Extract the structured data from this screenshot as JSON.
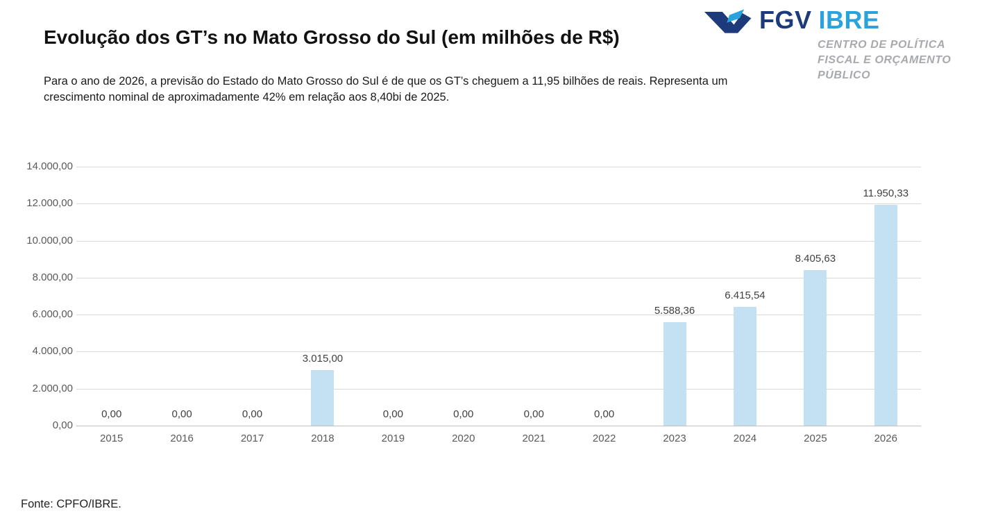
{
  "header": {
    "title": "Evolução dos GT’s no Mato Grosso do Sul (em milhões de R$)",
    "subtitle": "Para o ano de 2026, a previsão do Estado do Mato Grosso do Sul é de que os GT’s cheguem a 11,95 bilhões de reais. Representa um crescimento nominal de aproximadamente 42% em relação aos 8,40bi de 2025."
  },
  "logo": {
    "fgv_label": "FGV",
    "ibre_label": "IBRE",
    "center_line1": "CENTRO DE POLÍTICA",
    "center_line2": "FISCAL E ORÇAMENTO",
    "center_line3": "PÚBLICO",
    "fgv_color": "#1d3a7a",
    "ibre_color": "#2aa2dc",
    "mark_dark_color": "#1d3a7a",
    "mark_light_color": "#2aa2dc",
    "center_color": "#a7a9ac"
  },
  "chart_data": {
    "type": "bar",
    "title": "Evolução dos GT’s no Mato Grosso do Sul (em milhões de R$)",
    "categories": [
      "2015",
      "2016",
      "2017",
      "2018",
      "2019",
      "2020",
      "2021",
      "2022",
      "2023",
      "2024",
      "2025",
      "2026"
    ],
    "values": [
      0,
      0,
      0,
      3015.0,
      0,
      0,
      0,
      0,
      5588.36,
      6415.54,
      8405.63,
      11950.33
    ],
    "value_labels": [
      "0,00",
      "0,00",
      "0,00",
      "3.015,00",
      "0,00",
      "0,00",
      "0,00",
      "0,00",
      "5.588,36",
      "6.415,54",
      "8.405,63",
      "11.950,33"
    ],
    "y_ticks": [
      {
        "value": 0,
        "label": "0,00"
      },
      {
        "value": 2000,
        "label": "2.000,00"
      },
      {
        "value": 4000,
        "label": "4.000,00"
      },
      {
        "value": 6000,
        "label": "6.000,00"
      },
      {
        "value": 8000,
        "label": "8.000,00"
      },
      {
        "value": 10000,
        "label": "10.000,00"
      },
      {
        "value": 12000,
        "label": "12.000,00"
      },
      {
        "value": 14000,
        "label": "14.000,00"
      }
    ],
    "ylim": [
      0,
      14000
    ],
    "xlabel": "",
    "ylabel": "",
    "legend": "none",
    "grid": "horizontal",
    "bar_color": "#c3e1f2",
    "grid_color": "#d9d9d9",
    "label_color": "#404040",
    "axis_text_color": "#595959"
  },
  "footer": {
    "source": "Fonte: CPFO/IBRE."
  }
}
